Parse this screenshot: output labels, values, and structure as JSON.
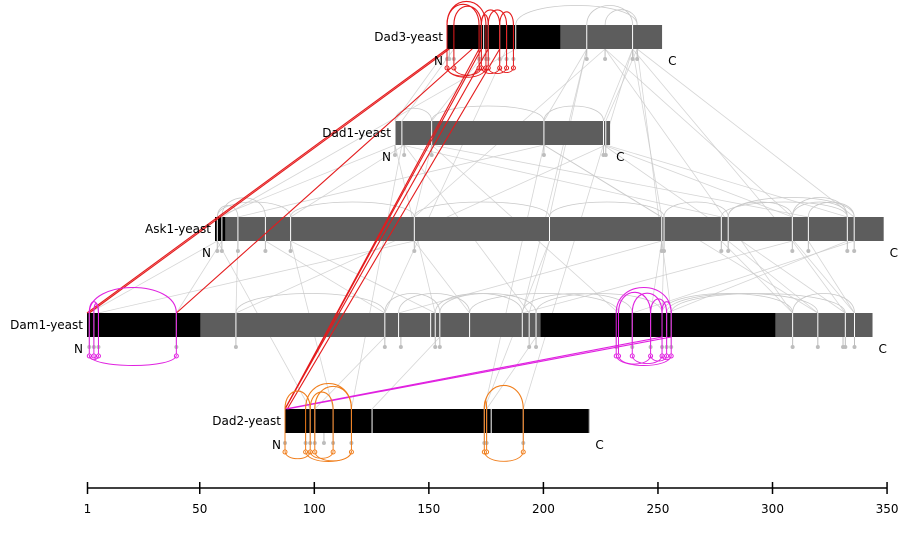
{
  "colors": {
    "bar_gray": "#5d5d5d",
    "bar_black": "#000000",
    "tick_white": "#ffffff",
    "link_gray": "#c8c8c8",
    "link_red": "#e41a1c",
    "link_magenta": "#e020e0",
    "link_orange": "#f07d1a",
    "axis": "#000000"
  },
  "proteins": [
    {
      "name": "Dad3-yeast",
      "label": "Dad3-yeast",
      "length": 94,
      "n_label": "N",
      "c_label": "C",
      "domains": [
        [
          1,
          50
        ]
      ],
      "site_ticks": [
        1,
        16,
        17,
        19,
        24,
        27,
        31,
        62,
        82
      ],
      "peptide_marks": [
        1,
        2,
        4,
        15,
        16,
        18,
        19,
        24,
        27,
        30,
        62,
        70,
        82,
        84
      ]
    },
    {
      "name": "Dad1-yeast",
      "label": "Dad1-yeast",
      "length": 94,
      "n_label": "N",
      "c_label": "C",
      "domains": [],
      "site_ticks": [
        1,
        4,
        17,
        66,
        92,
        93
      ],
      "peptide_marks": [
        1,
        5,
        17,
        66,
        92,
        93
      ]
    },
    {
      "name": "Ask1-yeast",
      "label": "Ask1-yeast",
      "length": 292,
      "n_label": "N",
      "c_label": "C",
      "domains": [
        [
          1,
          5
        ]
      ],
      "site_ticks": [
        2,
        4,
        11,
        23,
        34,
        88,
        147,
        196,
        197,
        222,
        225,
        253,
        260,
        277,
        280
      ],
      "peptide_marks": [
        2,
        4,
        11,
        23,
        34,
        88,
        196,
        197,
        222,
        225,
        253,
        260,
        277,
        280
      ]
    },
    {
      "name": "Dam1-yeast",
      "label": "Dam1-yeast",
      "length": 343,
      "n_label": "N",
      "c_label": "C",
      "domains": [
        [
          1,
          50
        ],
        [
          199,
          301
        ]
      ],
      "site_ticks": [
        2,
        4,
        6,
        40,
        66,
        131,
        137,
        151,
        153,
        155,
        168,
        191,
        194,
        197,
        233,
        239,
        247,
        252,
        254,
        256,
        309,
        320,
        332,
        336
      ],
      "peptide_marks": [
        2,
        4,
        6,
        40,
        66,
        131,
        138,
        153,
        155,
        194,
        197,
        232,
        239,
        247,
        252,
        254,
        256,
        309,
        320,
        331,
        332,
        336
      ]
    },
    {
      "name": "Dad2-yeast",
      "label": "Dad2-yeast",
      "length": 133,
      "n_label": "N",
      "c_label": "C",
      "domains": [
        [
          1,
          133
        ]
      ],
      "site_ticks": [
        1,
        12,
        14,
        22,
        30,
        39,
        88,
        89,
        91,
        105
      ],
      "peptide_marks": [
        1,
        10,
        12,
        14,
        18,
        22,
        30,
        88,
        89,
        105
      ]
    }
  ],
  "self_links": [
    {
      "protein": "Dad3-yeast",
      "color": "red",
      "pairs": [
        [
          1,
          15
        ],
        [
          1,
          18
        ],
        [
          16,
          19
        ],
        [
          16,
          24
        ],
        [
          19,
          27
        ],
        [
          24,
          30
        ],
        [
          4,
          16
        ]
      ]
    },
    {
      "protein": "Dam1-yeast",
      "color": "magenta",
      "pairs": [
        [
          2,
          40
        ],
        [
          2,
          6
        ],
        [
          4,
          6
        ],
        [
          233,
          247
        ],
        [
          239,
          252
        ],
        [
          247,
          254
        ],
        [
          232,
          256
        ],
        [
          252,
          256
        ]
      ]
    },
    {
      "protein": "Dad2-yeast",
      "color": "orange",
      "pairs": [
        [
          1,
          12
        ],
        [
          12,
          22
        ],
        [
          10,
          30
        ],
        [
          14,
          30
        ],
        [
          88,
          105
        ],
        [
          88,
          89
        ]
      ]
    },
    {
      "protein": "Ask1-yeast",
      "color": "gray",
      "pairs": [
        [
          2,
          34
        ],
        [
          34,
          88
        ],
        [
          88,
          147
        ],
        [
          147,
          197
        ],
        [
          197,
          225
        ],
        [
          225,
          253
        ],
        [
          253,
          277
        ],
        [
          260,
          280
        ],
        [
          222,
          277
        ]
      ]
    },
    {
      "protein": "Dad1-yeast",
      "color": "gray",
      "pairs": [
        [
          1,
          17
        ],
        [
          17,
          66
        ],
        [
          66,
          92
        ]
      ]
    }
  ],
  "cross_links": [
    {
      "from": "Dad3-yeast",
      "from_pos": 1,
      "to": "Dam1-yeast",
      "to_pos": 1,
      "color": "red"
    },
    {
      "from": "Dad3-yeast",
      "from_pos": 2,
      "to": "Dam1-yeast",
      "to_pos": 2,
      "color": "red"
    },
    {
      "from": "Dad3-yeast",
      "from_pos": 12,
      "to": "Dam1-yeast",
      "to_pos": 40,
      "color": "red"
    },
    {
      "from": "Dad3-yeast",
      "from_pos": 15,
      "to": "Dad2-yeast",
      "to_pos": 1,
      "color": "red"
    },
    {
      "from": "Dad3-yeast",
      "from_pos": 16,
      "to": "Dad2-yeast",
      "to_pos": 1,
      "color": "red"
    },
    {
      "from": "Dad3-yeast",
      "from_pos": 19,
      "to": "Dad2-yeast",
      "to_pos": 1,
      "color": "red"
    },
    {
      "from": "Dad3-yeast",
      "from_pos": 24,
      "to": "Dad2-yeast",
      "to_pos": 2,
      "color": "red"
    },
    {
      "from": "Dad2-yeast",
      "from_pos": 1,
      "to": "Dam1-yeast",
      "to_pos": 252,
      "color": "magenta"
    },
    {
      "from": "Dad2-yeast",
      "from_pos": 2,
      "to": "Dam1-yeast",
      "to_pos": 256,
      "color": "magenta"
    }
  ],
  "gray_links": [
    [
      "Dad3-yeast",
      1,
      "Dad1-yeast",
      1
    ],
    [
      "Dad3-yeast",
      4,
      "Dad1-yeast",
      4
    ],
    [
      "Dad3-yeast",
      19,
      "Dad1-yeast",
      17
    ],
    [
      "Dad3-yeast",
      62,
      "Dad1-yeast",
      66
    ],
    [
      "Dad3-yeast",
      82,
      "Dad1-yeast",
      92
    ],
    [
      "Dad3-yeast",
      84,
      "Dad1-yeast",
      93
    ],
    [
      "Dad3-yeast",
      70,
      "Ask1-yeast",
      88
    ],
    [
      "Dad3-yeast",
      82,
      "Ask1-yeast",
      196
    ],
    [
      "Dad3-yeast",
      62,
      "Ask1-yeast",
      147
    ],
    [
      "Dad3-yeast",
      84,
      "Ask1-yeast",
      280
    ],
    [
      "Dad3-yeast",
      70,
      "Ask1-yeast",
      253
    ],
    [
      "Dad3-yeast",
      31,
      "Ask1-yeast",
      4
    ],
    [
      "Dad3-yeast",
      82,
      "Dam1-yeast",
      336
    ],
    [
      "Dad3-yeast",
      84,
      "Dam1-yeast",
      256
    ],
    [
      "Dad3-yeast",
      62,
      "Dam1-yeast",
      191
    ],
    [
      "Dad3-yeast",
      27,
      "Dam1-yeast",
      131
    ],
    [
      "Dad3-yeast",
      70,
      "Dam1-yeast",
      309
    ],
    [
      "Dad3-yeast",
      82,
      "Dad2-yeast",
      105
    ],
    [
      "Dad1-yeast",
      1,
      "Ask1-yeast",
      2
    ],
    [
      "Dad1-yeast",
      5,
      "Ask1-yeast",
      34
    ],
    [
      "Dad1-yeast",
      17,
      "Ask1-yeast",
      88
    ],
    [
      "Dad1-yeast",
      66,
      "Ask1-yeast",
      196
    ],
    [
      "Dad1-yeast",
      92,
      "Ask1-yeast",
      253
    ],
    [
      "Dad1-yeast",
      93,
      "Ask1-yeast",
      277
    ],
    [
      "Dad1-yeast",
      4,
      "Ask1-yeast",
      222
    ],
    [
      "Dad1-yeast",
      17,
      "Ask1-yeast",
      260
    ],
    [
      "Dad1-yeast",
      66,
      "Ask1-yeast",
      11
    ],
    [
      "Dad1-yeast",
      1,
      "Dam1-yeast",
      153
    ],
    [
      "Dad1-yeast",
      5,
      "Dam1-yeast",
      194
    ],
    [
      "Dad1-yeast",
      17,
      "Dam1-yeast",
      233
    ],
    [
      "Dad1-yeast",
      66,
      "Dam1-yeast",
      320
    ],
    [
      "Dad1-yeast",
      92,
      "Dam1-yeast",
      332
    ],
    [
      "Dad1-yeast",
      93,
      "Dam1-yeast",
      66
    ],
    [
      "Dad1-yeast",
      4,
      "Dad2-yeast",
      30
    ],
    [
      "Dad1-yeast",
      66,
      "Dad2-yeast",
      88
    ],
    [
      "Ask1-yeast",
      2,
      "Dam1-yeast",
      2
    ],
    [
      "Ask1-yeast",
      4,
      "Dam1-yeast",
      40
    ],
    [
      "Ask1-yeast",
      11,
      "Dam1-yeast",
      66
    ],
    [
      "Ask1-yeast",
      23,
      "Dam1-yeast",
      131
    ],
    [
      "Ask1-yeast",
      34,
      "Dam1-yeast",
      153
    ],
    [
      "Ask1-yeast",
      88,
      "Dam1-yeast",
      168
    ],
    [
      "Ask1-yeast",
      147,
      "Dam1-yeast",
      194
    ],
    [
      "Ask1-yeast",
      196,
      "Dam1-yeast",
      247
    ],
    [
      "Ask1-yeast",
      197,
      "Dam1-yeast",
      252
    ],
    [
      "Ask1-yeast",
      222,
      "Dam1-yeast",
      309
    ],
    [
      "Ask1-yeast",
      225,
      "Dam1-yeast",
      320
    ],
    [
      "Ask1-yeast",
      253,
      "Dam1-yeast",
      332
    ],
    [
      "Ask1-yeast",
      260,
      "Dam1-yeast",
      336
    ],
    [
      "Ask1-yeast",
      277,
      "Dam1-yeast",
      254
    ],
    [
      "Ask1-yeast",
      280,
      "Dam1-yeast",
      239
    ],
    [
      "Ask1-yeast",
      88,
      "Dam1-yeast",
      6
    ],
    [
      "Ask1-yeast",
      196,
      "Dam1-yeast",
      137
    ],
    [
      "Ask1-yeast",
      253,
      "Dam1-yeast",
      191
    ],
    [
      "Ask1-yeast",
      2,
      "Dad2-yeast",
      12
    ],
    [
      "Ask1-yeast",
      34,
      "Dad2-yeast",
      22
    ],
    [
      "Ask1-yeast",
      147,
      "Dad2-yeast",
      88
    ],
    [
      "Dam1-yeast",
      155,
      "Dad2-yeast",
      39
    ],
    [
      "Dam1-yeast",
      197,
      "Dad2-yeast",
      89
    ],
    [
      "Dam1-yeast",
      131,
      "Dad2-yeast",
      14
    ]
  ],
  "gray_top_arcs": [
    [
      "Dam1-yeast",
      131,
      155
    ],
    [
      "Dam1-yeast",
      137,
      168
    ],
    [
      "Dam1-yeast",
      153,
      191
    ],
    [
      "Dam1-yeast",
      155,
      197
    ],
    [
      "Dam1-yeast",
      168,
      233
    ],
    [
      "Dam1-yeast",
      191,
      239
    ],
    [
      "Dam1-yeast",
      197,
      252
    ],
    [
      "Dam1-yeast",
      252,
      309
    ],
    [
      "Dam1-yeast",
      254,
      320
    ],
    [
      "Dam1-yeast",
      256,
      332
    ],
    [
      "Dam1-yeast",
      309,
      336
    ],
    [
      "Dam1-yeast",
      66,
      131
    ],
    [
      "Ask1-yeast",
      2,
      11
    ],
    [
      "Ask1-yeast",
      4,
      23
    ],
    [
      "Ask1-yeast",
      253,
      277
    ],
    [
      "Ask1-yeast",
      225,
      280
    ],
    [
      "Dad3-yeast",
      62,
      82
    ],
    [
      "Dad3-yeast",
      31,
      84
    ],
    [
      "Dad3-yeast",
      70,
      84
    ]
  ],
  "axis": {
    "min": 1,
    "max": 350,
    "ticks": [
      {
        "value": 1,
        "label": "1"
      },
      {
        "value": 50,
        "label": "50"
      },
      {
        "value": 100,
        "label": "100"
      },
      {
        "value": 150,
        "label": "150"
      },
      {
        "value": 200,
        "label": "200"
      },
      {
        "value": 250,
        "label": "250"
      },
      {
        "value": 300,
        "label": "300"
      },
      {
        "value": 350,
        "label": "350"
      }
    ]
  }
}
